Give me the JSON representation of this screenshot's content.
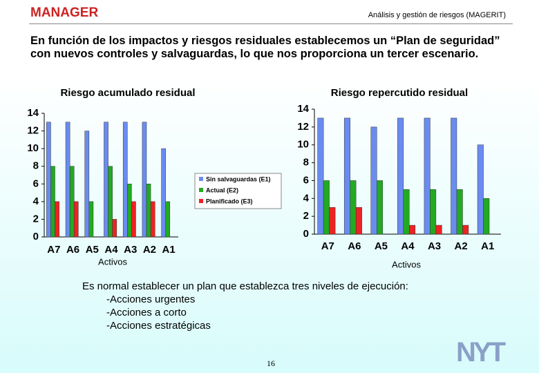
{
  "header": {
    "logo": "MANAGER",
    "subtitle": "Análisis y gestión de riesgos (MAGERIT)"
  },
  "heading": "En función de los impactos y riesgos residuales establecemos un “Plan de seguridad” con nuevos controles y salvaguardas, lo que nos proporciona un tercer escenario.",
  "chart_data": [
    {
      "type": "bar",
      "title": "Riesgo acumulado residual",
      "x_label": "Activos",
      "categories": [
        "A7",
        "A6",
        "A5",
        "A4",
        "A3",
        "A2",
        "A1"
      ],
      "series": [
        {
          "name": "Sin salvaguardas (E1)",
          "color": "#6a8cf0",
          "values": [
            13,
            13,
            12,
            13,
            13,
            13,
            10
          ]
        },
        {
          "name": "Actual (E2)",
          "color": "#22aa22",
          "values": [
            8,
            8,
            4,
            8,
            6,
            6,
            4
          ]
        },
        {
          "name": "Planificado (E3)",
          "color": "#ee2222",
          "values": [
            4,
            4,
            0,
            2,
            4,
            4,
            0
          ]
        }
      ],
      "ylim": [
        0,
        14
      ],
      "yticks": [
        0,
        2,
        4,
        6,
        8,
        10,
        12,
        14
      ],
      "legend": "right"
    },
    {
      "type": "bar",
      "title": "Riesgo repercutido residual",
      "x_label": "Activos",
      "categories": [
        "A7",
        "A6",
        "A5",
        "A4",
        "A3",
        "A2",
        "A1"
      ],
      "series": [
        {
          "color": "#6a8cf0",
          "values": [
            13,
            13,
            12,
            13,
            13,
            13,
            10
          ]
        },
        {
          "color": "#22aa22",
          "values": [
            6,
            6,
            6,
            5,
            5,
            5,
            4
          ]
        },
        {
          "color": "#ee2222",
          "values": [
            3,
            3,
            0,
            1,
            1,
            1,
            0
          ]
        }
      ],
      "ylim": [
        0,
        14
      ],
      "yticks": [
        0,
        2,
        4,
        6,
        8,
        10,
        12,
        14
      ]
    }
  ],
  "body": {
    "intro": "Es normal establecer un plan que establezca tres niveles de ejecución:",
    "items": [
      "-Acciones urgentes",
      "-Acciones a corto",
      "-Acciones estratégicas"
    ]
  },
  "page_number": "16",
  "footer_logo": "NYT"
}
